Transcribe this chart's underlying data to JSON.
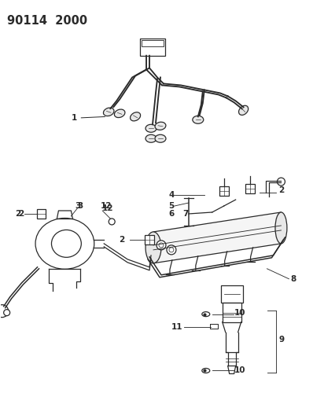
{
  "title": "90114  2000",
  "background_color": "#ffffff",
  "title_fontsize": 10.5,
  "label_fontsize": 7.5,
  "figsize": [
    3.98,
    5.33
  ],
  "dpi": 100,
  "line_color": "#2a2a2a",
  "lw": 0.9
}
